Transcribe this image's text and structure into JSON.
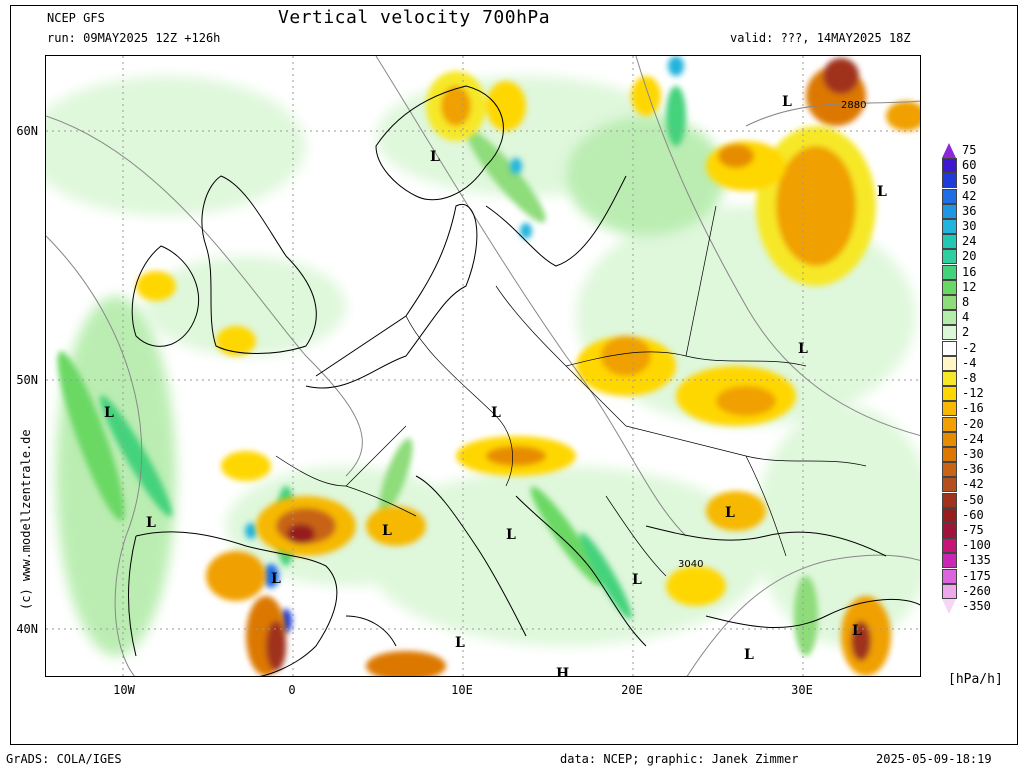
{
  "header": {
    "model": "NCEP GFS",
    "title": "Vertical velocity 700hPa",
    "run": "run: 09MAY2025 12Z +126h",
    "valid": "valid: ???, 14MAY2025 18Z"
  },
  "side_credit": "(c)  www.modellzentrale.de",
  "footer": {
    "left": "GrADS: COLA/IGES",
    "center": "data: NCEP; graphic: Janek Zimmer",
    "right": "2025-05-09-18:19"
  },
  "axes": {
    "lat_labels": [
      "60N",
      "50N",
      "40N"
    ],
    "lon_labels": [
      "10W",
      "0",
      "10E",
      "20E",
      "30E"
    ]
  },
  "legend": {
    "unit": "[hPa/h]",
    "levels": [
      "75",
      "60",
      "50",
      "42",
      "36",
      "30",
      "24",
      "20",
      "16",
      "12",
      "8",
      "4",
      "2",
      "-2",
      "-4",
      "-8",
      "-12",
      "-16",
      "-20",
      "-24",
      "-30",
      "-36",
      "-42",
      "-50",
      "-60",
      "-75",
      "-100",
      "-135",
      "-175",
      "-260",
      "-350"
    ],
    "colors": [
      "#8c28d7",
      "#3c18d0",
      "#1e3cd9",
      "#1e6ee6",
      "#1e96e1",
      "#22b4dc",
      "#22c8b4",
      "#2fcfa0",
      "#44d27c",
      "#6ad864",
      "#8edc7a",
      "#b4ecaa",
      "#dcf7d8",
      "#ffffff",
      "#fff6c4",
      "#f6e828",
      "#ffd700",
      "#f6b800",
      "#f0a000",
      "#e68c00",
      "#dc7800",
      "#c86414",
      "#b4501e",
      "#a0321e",
      "#961e1e",
      "#a0143c",
      "#c81478",
      "#c828b4",
      "#dc64dc",
      "#ecaaec",
      "#f5d6f5"
    ]
  },
  "map_labels": {
    "lows": [
      "L",
      "L",
      "L",
      "L",
      "L",
      "L",
      "L",
      "L",
      "L",
      "L",
      "L",
      "L",
      "L",
      "L",
      "L"
    ],
    "highs": [
      "H"
    ],
    "contours": [
      "2880",
      "3040"
    ]
  }
}
